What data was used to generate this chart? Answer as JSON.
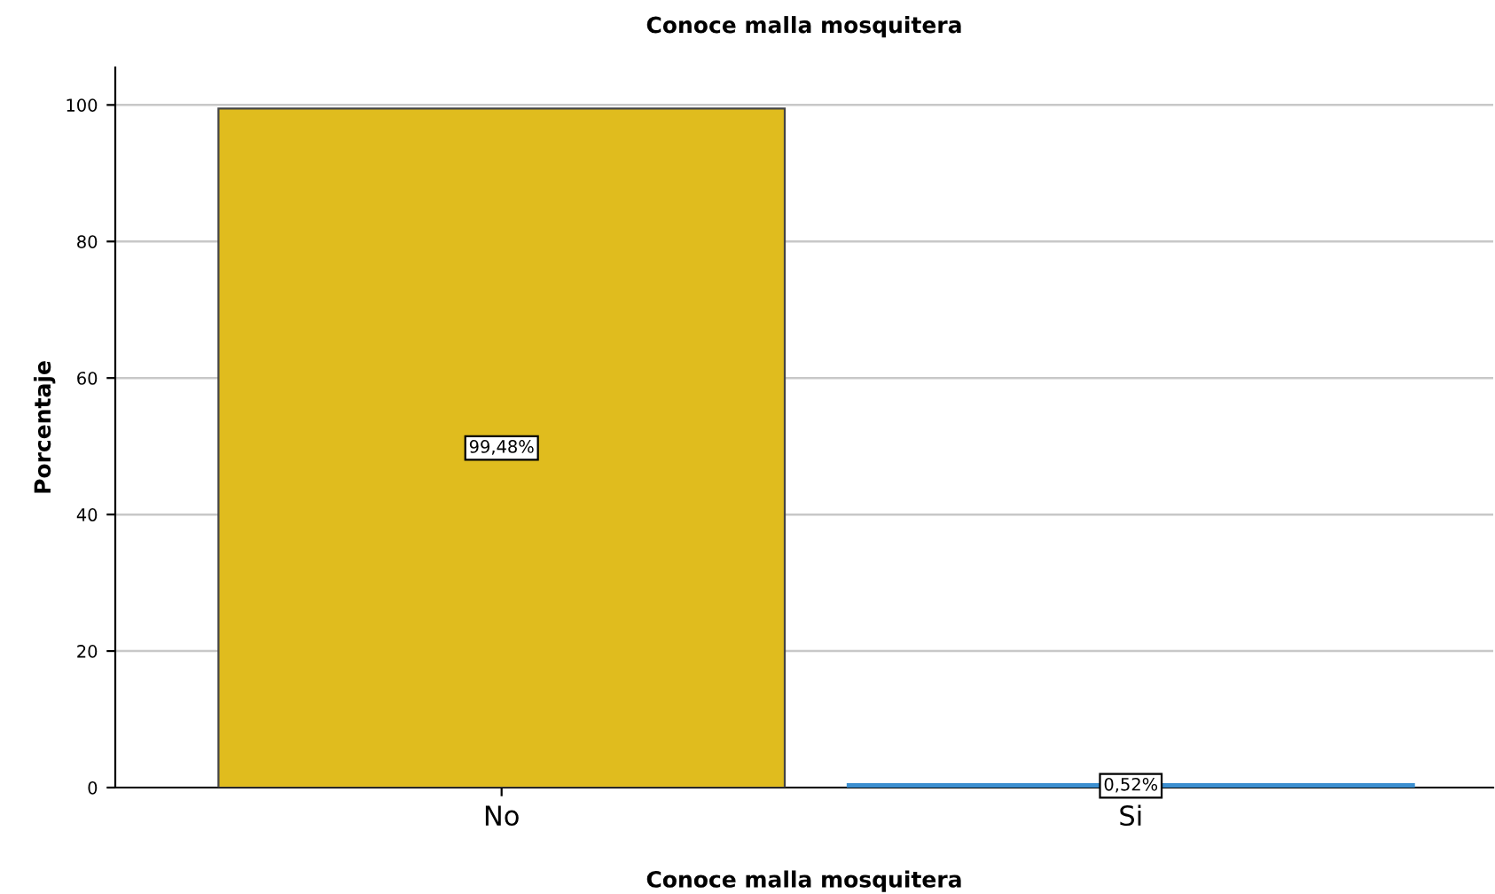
{
  "chart_data": {
    "type": "bar",
    "title": "Conoce malla mosquitera",
    "xlabel": "Conoce malla mosquitera",
    "ylabel": "Porcentaje",
    "categories": [
      "No",
      "Si"
    ],
    "values": [
      99.48,
      0.52
    ],
    "colors": [
      "#e0bc1e",
      "#3c8fd0"
    ],
    "value_labels": [
      "99,48%",
      "0,52%"
    ],
    "ylim": [
      0,
      105.5
    ],
    "yticks": [
      0,
      20,
      40,
      60,
      80,
      100
    ],
    "grid": "y",
    "legend": false
  }
}
